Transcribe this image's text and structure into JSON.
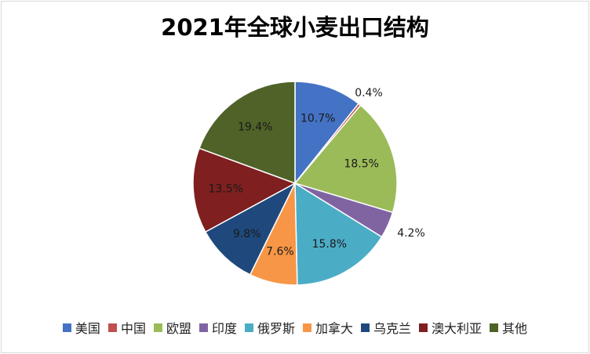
{
  "chart_data": {
    "type": "pie",
    "title": "2021年全球小麦出口结构",
    "categories": [
      "美国",
      "中国",
      "欧盟",
      "印度",
      "俄罗斯",
      "加拿大",
      "乌克兰",
      "澳大利亚",
      "其他"
    ],
    "values": [
      10.7,
      0.4,
      18.5,
      4.2,
      15.8,
      7.6,
      9.8,
      13.5,
      19.4
    ],
    "data_labels": [
      "10.7%",
      "0.4%",
      "18.5%",
      "4.2%",
      "15.8%",
      "7.6%",
      "9.8%",
      "13.5%",
      "19.4%"
    ],
    "colors": [
      "#4472C4",
      "#C0504D",
      "#9BBB59",
      "#8064A2",
      "#4BACC6",
      "#F79646",
      "#1F497D",
      "#7F1F1F",
      "#4F6228"
    ],
    "legend_position": "bottom"
  }
}
